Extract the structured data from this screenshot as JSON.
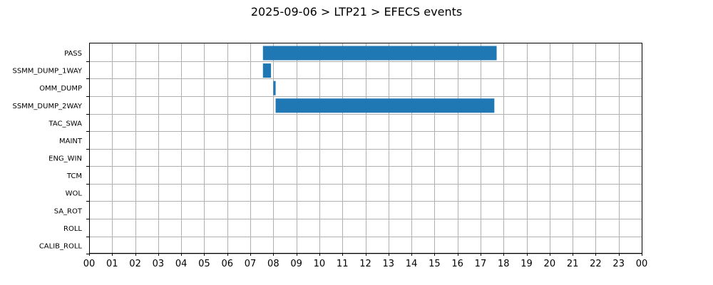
{
  "chart_data": {
    "type": "bar",
    "orientation": "horizontal",
    "title": "2025-09-06 > LTP21 > EFECS events",
    "xlabel": "",
    "ylabel": "",
    "x_unit": "hour of day",
    "xlim": [
      0,
      24
    ],
    "x_tick_labels": [
      "00",
      "01",
      "02",
      "03",
      "04",
      "05",
      "06",
      "07",
      "08",
      "09",
      "10",
      "11",
      "12",
      "13",
      "14",
      "15",
      "16",
      "17",
      "18",
      "19",
      "20",
      "21",
      "22",
      "23",
      "00"
    ],
    "categories": [
      "PASS",
      "SSMM_DUMP_1WAY",
      "OMM_DUMP",
      "SSMM_DUMP_2WAY",
      "TAC_SWA",
      "MAINT",
      "ENG_WIN",
      "TCM",
      "WOL",
      "SA_ROT",
      "ROLL",
      "CALIB_ROLL"
    ],
    "events": [
      {
        "category": "PASS",
        "start": 7.55,
        "end": 17.7
      },
      {
        "category": "SSMM_DUMP_1WAY",
        "start": 7.55,
        "end": 7.9
      },
      {
        "category": "OMM_DUMP",
        "start": 8.0,
        "end": 8.1
      },
      {
        "category": "SSMM_DUMP_2WAY",
        "start": 8.1,
        "end": 17.6
      }
    ],
    "grid": true,
    "legend": "none",
    "colors": {
      "bar": "#1f77b4",
      "grid": "#b0b0b0",
      "axis": "#000000"
    }
  }
}
